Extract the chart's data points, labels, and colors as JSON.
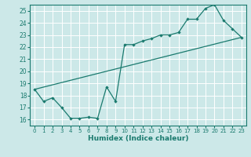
{
  "xlabel": "Humidex (Indice chaleur)",
  "bg_color": "#cce8e8",
  "grid_color": "#ffffff",
  "line_color": "#1a7a6e",
  "xlim": [
    -0.5,
    23.5
  ],
  "ylim": [
    15.5,
    25.5
  ],
  "xticks": [
    0,
    1,
    2,
    3,
    4,
    5,
    6,
    7,
    8,
    9,
    10,
    11,
    12,
    13,
    14,
    15,
    16,
    17,
    18,
    19,
    20,
    21,
    22,
    23
  ],
  "yticks": [
    16,
    17,
    18,
    19,
    20,
    21,
    22,
    23,
    24,
    25
  ],
  "line1_x": [
    0,
    1,
    2,
    3,
    4,
    5,
    6,
    7,
    8,
    9,
    10,
    11,
    12,
    13,
    14,
    15,
    16,
    17,
    18,
    19,
    20,
    21,
    22,
    23
  ],
  "line1_y": [
    18.5,
    17.5,
    17.8,
    17.0,
    16.1,
    16.1,
    16.2,
    16.1,
    18.7,
    17.5,
    22.2,
    22.2,
    22.5,
    22.7,
    23.0,
    23.0,
    23.2,
    24.3,
    24.3,
    25.2,
    25.5,
    24.2,
    23.5,
    22.8
  ],
  "line2_x": [
    0,
    23
  ],
  "line2_y": [
    18.5,
    22.8
  ]
}
